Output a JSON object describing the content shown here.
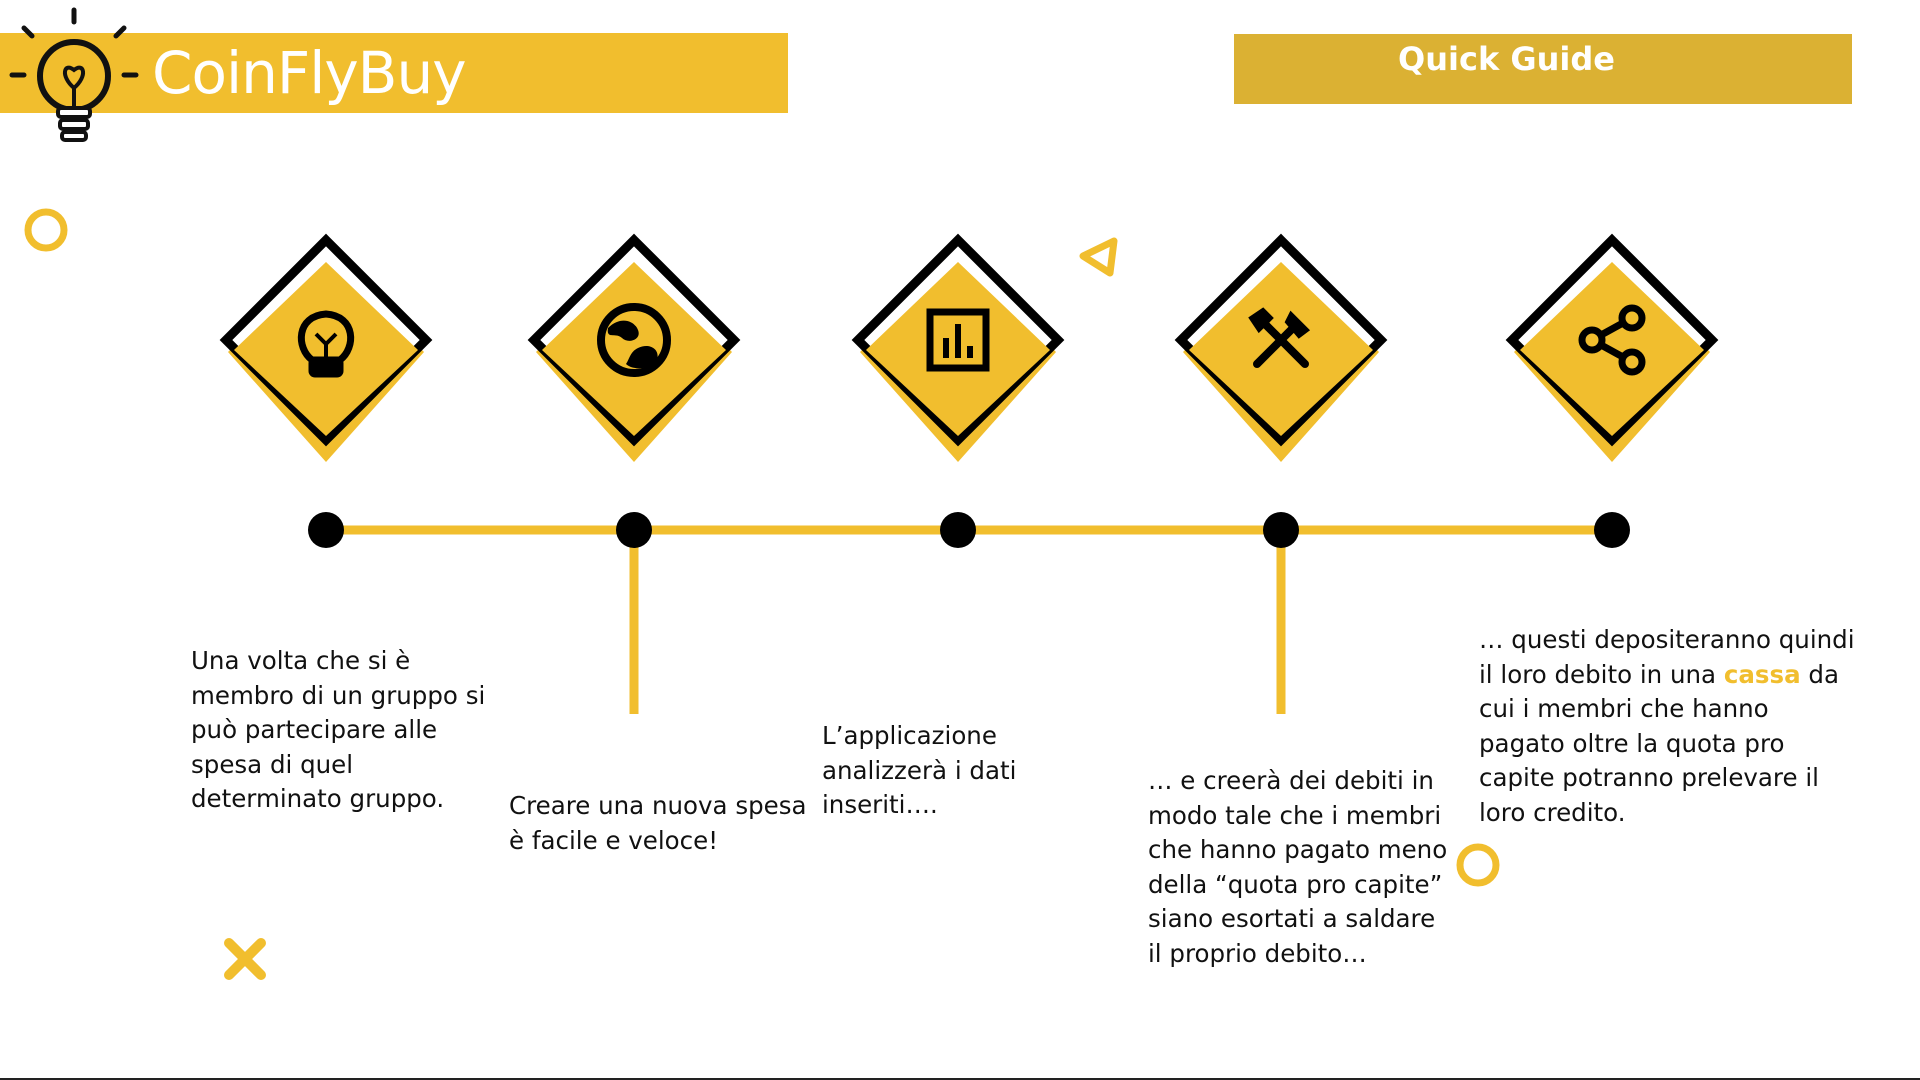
{
  "header": {
    "brand": "CoinFlyBuy",
    "guide_label": "Quick Guide"
  },
  "colors": {
    "accent": "#F1BE2E",
    "guide_bar": "#DBB133",
    "ink": "#111111"
  },
  "steps": [
    {
      "icon": "lightbulb-icon",
      "text": "Una volta che si è membro di un gruppo si può partecipare alle spesa di quel determinato gruppo."
    },
    {
      "icon": "globe-icon",
      "text": "Creare una nuova spesa è facile e veloce!"
    },
    {
      "icon": "bar-chart-icon",
      "text": "L’applicazione analizzerà i dati inseriti…."
    },
    {
      "icon": "tools-icon",
      "text": "… e creerà dei debiti in modo tale che i membri che hanno pagato meno della “quota pro capite” siano esortati a saldare il proprio debito…"
    },
    {
      "icon": "share-icon",
      "text_before": "… questi depositeranno quindi il loro debito in una ",
      "highlight": "cassa",
      "text_after": " da cui i membri che hanno pagato oltre la quota pro capite potranno prelevare il loro credito."
    }
  ],
  "decorations": [
    "circle-icon",
    "circle-icon",
    "triangle-icon",
    "x-icon"
  ]
}
